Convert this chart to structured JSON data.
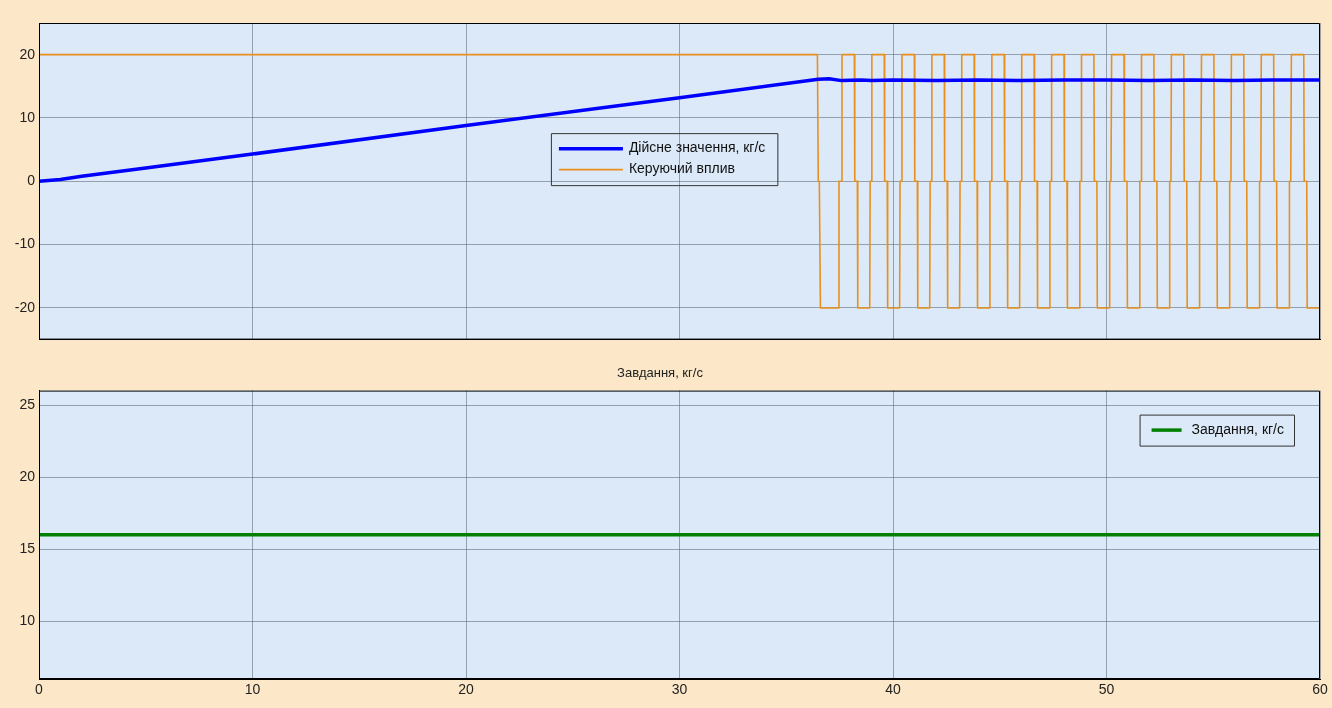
{
  "chart_data": [
    {
      "type": "line",
      "xlim": [
        0,
        60
      ],
      "xticks": [
        0,
        10,
        20,
        30,
        40,
        50,
        60
      ],
      "ylim": [
        -25,
        25
      ],
      "yticks": [
        -20,
        -10,
        0,
        10,
        20
      ],
      "grid": true,
      "legend": "center",
      "tick_labels": "y",
      "series": [
        {
          "name": "Дійсне значення, кг/с",
          "color": "#0000ff",
          "x": [
            0,
            1,
            2,
            5,
            10,
            20,
            30,
            36.5,
            37,
            37.6,
            38.5,
            39,
            40,
            42,
            44,
            46,
            48,
            50,
            52,
            54,
            56,
            58,
            60
          ],
          "values": [
            0,
            0.3,
            0.8,
            2.1,
            4.3,
            8.8,
            13.2,
            16.1,
            16.2,
            15.9,
            16,
            15.9,
            16,
            15.9,
            16,
            15.9,
            16,
            16,
            15.9,
            16,
            15.9,
            16,
            16
          ]
        },
        {
          "name": "Керуючий вплив",
          "color": "#e8901e",
          "x": [
            0,
            36.46,
            36.5,
            36.55,
            36.6,
            37.45,
            37.47,
            37.59,
            37.61,
            38.19,
            38.21,
            38.33,
            38.35,
            38.91,
            38.93,
            38.99,
            39.01,
            39.59,
            39.61,
            39.73,
            39.75,
            40.31,
            40.33,
            40.39,
            40.42,
            41.0,
            41.02,
            41.14,
            41.16,
            41.72,
            41.74,
            41.8,
            41.82,
            42.4,
            42.42,
            42.54,
            42.56,
            43.12,
            43.14,
            43.2,
            43.22,
            43.8,
            43.82,
            43.94,
            43.96,
            44.52,
            44.54,
            44.6,
            44.63,
            45.21,
            45.23,
            45.35,
            45.37,
            45.93,
            45.95,
            46.01,
            46.03,
            46.61,
            46.63,
            46.75,
            46.77,
            47.33,
            47.35,
            47.41,
            47.43,
            48.01,
            48.03,
            48.15,
            48.17,
            48.73,
            48.75,
            48.81,
            48.83,
            49.41,
            49.43,
            49.55,
            49.57,
            50.13,
            50.15,
            50.21,
            50.24,
            50.82,
            50.84,
            50.96,
            50.98,
            51.54,
            51.56,
            51.62,
            51.64,
            52.22,
            52.24,
            52.36,
            52.38,
            52.94,
            52.96,
            53.02,
            53.04,
            53.62,
            53.64,
            53.76,
            53.78,
            54.34,
            54.36,
            54.42,
            54.45,
            55.03,
            55.05,
            55.17,
            55.19,
            55.75,
            55.77,
            55.83,
            55.85,
            56.43,
            56.45,
            56.57,
            56.59,
            57.15,
            57.17,
            57.23,
            57.25,
            57.83,
            57.85,
            57.97,
            57.99,
            58.55,
            58.57,
            58.63,
            58.66,
            59.24,
            59.26,
            59.38,
            59.4,
            59.96
          ],
          "values": [
            20,
            20,
            0,
            0,
            -20,
            -20,
            0,
            0,
            20,
            20,
            0,
            0,
            -20,
            -20,
            0,
            0,
            20,
            20,
            0,
            0,
            -20,
            -20,
            0,
            0,
            20,
            20,
            0,
            0,
            -20,
            -20,
            0,
            0,
            20,
            20,
            0,
            0,
            -20,
            -20,
            0,
            0,
            20,
            20,
            0,
            0,
            -20,
            -20,
            0,
            0,
            20,
            20,
            0,
            0,
            -20,
            -20,
            0,
            0,
            20,
            20,
            0,
            0,
            -20,
            -20,
            0,
            0,
            20,
            20,
            0,
            0,
            -20,
            -20,
            0,
            0,
            20,
            20,
            0,
            0,
            -20,
            -20,
            0,
            0,
            20,
            20,
            0,
            0,
            -20,
            -20,
            0,
            0,
            20,
            20,
            0,
            0,
            -20,
            -20,
            0,
            0,
            20,
            20,
            0,
            0,
            -20,
            -20,
            0,
            0,
            20,
            20,
            0,
            0,
            -20,
            -20,
            0,
            0,
            20,
            20,
            0,
            0,
            -20,
            -20,
            0,
            0,
            20,
            20,
            0,
            0,
            -20,
            -20,
            0,
            0,
            20,
            20,
            0,
            0,
            -20,
            -20
          ]
        }
      ]
    },
    {
      "type": "line",
      "title": "Завдання, кг/с",
      "xlim": [
        0,
        60
      ],
      "xticks": [
        0,
        10,
        20,
        30,
        40,
        50,
        60
      ],
      "ylim": [
        6,
        26
      ],
      "yticks": [
        10,
        15,
        20,
        25
      ],
      "grid": true,
      "legend": "top right",
      "series": [
        {
          "name": "Завдання, кг/с",
          "color": "#008000",
          "x": [
            0,
            60
          ],
          "values": [
            16,
            16
          ]
        }
      ]
    }
  ]
}
